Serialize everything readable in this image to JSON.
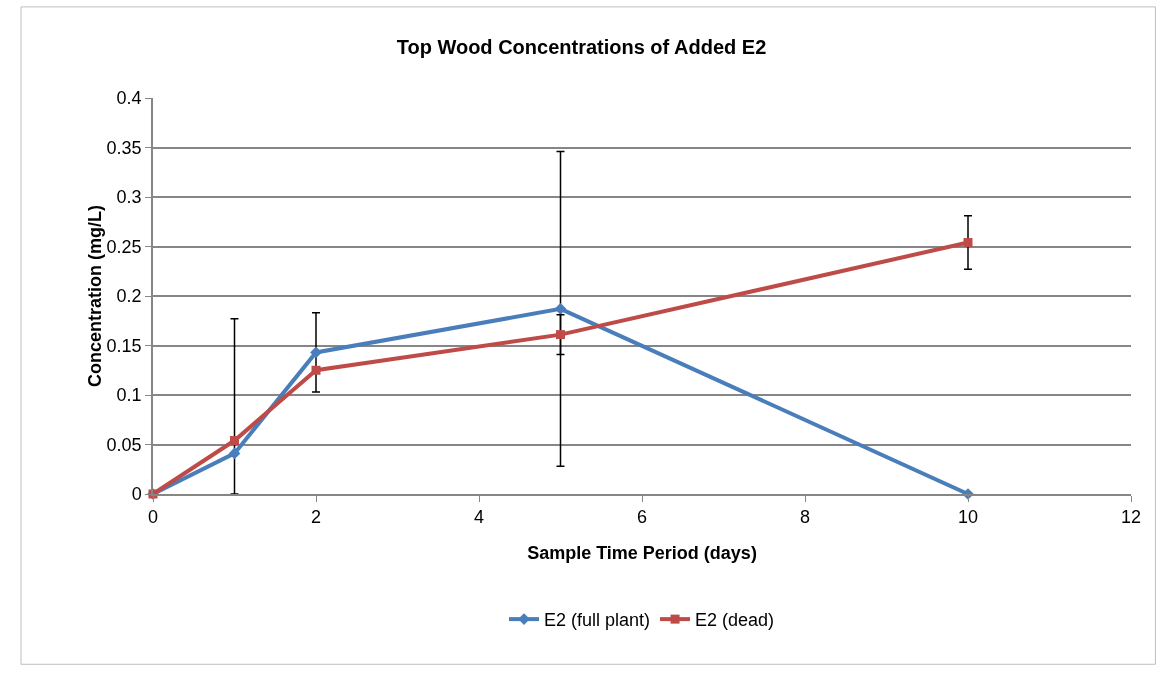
{
  "chart_data": {
    "type": "line",
    "title": "Top Wood Concentrations of Added E2",
    "xlabel": "Sample Time Period (days)",
    "ylabel": "Concentration (mg/L)",
    "x": [
      0,
      1,
      2,
      5,
      10
    ],
    "series": [
      {
        "name": "E2 (full plant)",
        "color": "#4a7ebb",
        "marker": "diamond",
        "values": [
          0,
          0.041,
          0.143,
          0.187,
          0
        ],
        "errors": [
          null,
          [
            0,
            0.177
          ],
          0.04,
          0.159,
          null
        ]
      },
      {
        "name": "E2 (dead)",
        "color": "#be4b48",
        "marker": "square",
        "values": [
          0,
          0.054,
          0.125,
          0.161,
          0.254
        ],
        "errors": [
          null,
          null,
          null,
          0.02,
          0.027
        ]
      }
    ],
    "xlim": [
      0,
      12
    ],
    "xticks": [
      0,
      2,
      4,
      6,
      8,
      10,
      12
    ],
    "ylim": [
      0,
      0.4
    ],
    "yticks": [
      0,
      0.05,
      0.1,
      0.15,
      0.2,
      0.25,
      0.3,
      0.35,
      0.4
    ],
    "grid": "y",
    "legend": "bottom",
    "line_style": "solid"
  }
}
